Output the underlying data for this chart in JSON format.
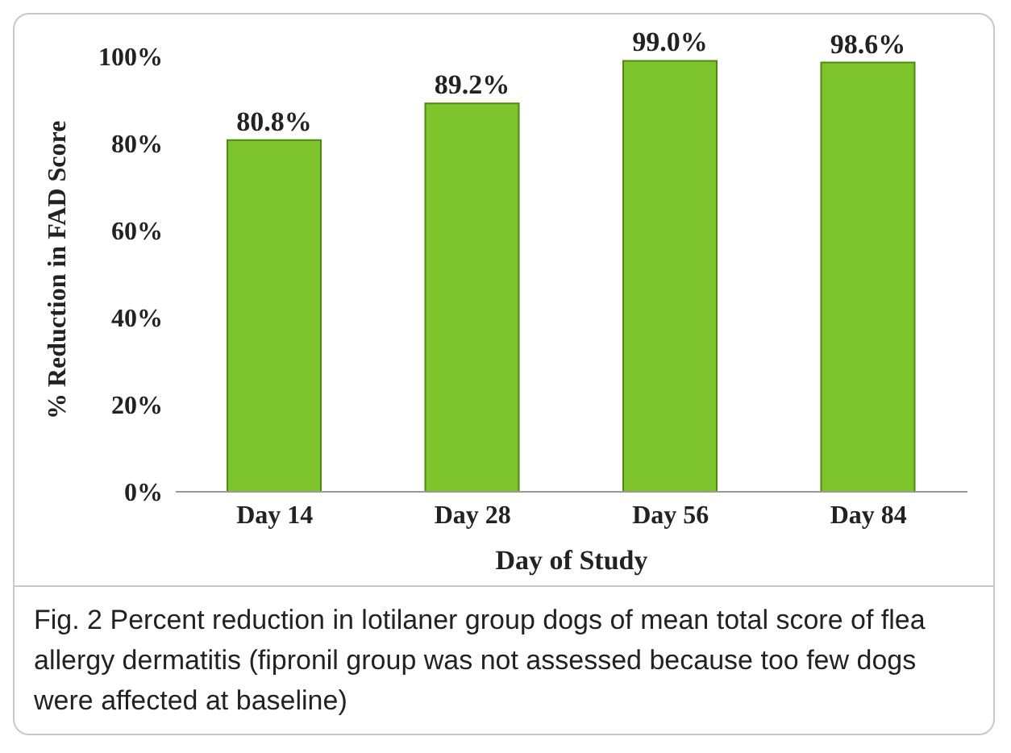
{
  "chart_data": {
    "type": "bar",
    "xlabel": "Day of Study",
    "ylabel": "% Reduction in FAD Score",
    "categories": [
      "Day 14",
      "Day 28",
      "Day 56",
      "Day 84"
    ],
    "values": [
      80.8,
      89.2,
      99.0,
      98.6
    ],
    "value_labels": [
      "80.8%",
      "89.2%",
      "99.0%",
      "98.6%"
    ],
    "color": "#7ec42c",
    "ylim": [
      0,
      100
    ],
    "yticks": [
      {
        "value": 0,
        "label": "0%"
      },
      {
        "value": 20,
        "label": "20%"
      },
      {
        "value": 40,
        "label": "40%"
      },
      {
        "value": 60,
        "label": "60%"
      },
      {
        "value": 80,
        "label": "80%"
      },
      {
        "value": 100,
        "label": "100%"
      }
    ],
    "grid": false,
    "legend": false,
    "annotations": [
      "Fig. 2 Percent reduction in lotilaner group dogs of mean total score of flea allergy dermatitis (fipronil group was not assessed because too few dogs were affected at baseline)"
    ]
  }
}
